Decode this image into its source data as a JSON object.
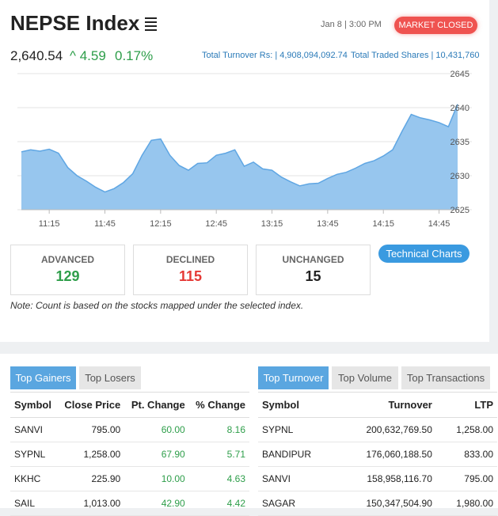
{
  "header": {
    "title": "NEPSE Index",
    "date_time": "Jan 8 | 3:00 PM",
    "market_status": "MARKET CLOSED",
    "index_value": "2,640.54",
    "change": "4.59",
    "change_pct": "0.17%",
    "total_turnover": "Total Turnover Rs: | 4,908,094,092.74",
    "total_traded_shares": "Total Traded Shares | 10,431,760"
  },
  "chart_data": {
    "type": "area",
    "x_ticks": [
      "11:15",
      "11:45",
      "12:15",
      "12:45",
      "13:15",
      "13:45",
      "14:15",
      "14:45"
    ],
    "y_ticks": [
      "2645",
      "2640",
      "2635",
      "2630",
      "2625"
    ],
    "ylim": [
      2625,
      2645
    ],
    "x": [
      "11:00",
      "11:05",
      "11:10",
      "11:15",
      "11:20",
      "11:25",
      "11:30",
      "11:35",
      "11:40",
      "11:45",
      "11:50",
      "11:55",
      "12:00",
      "12:05",
      "12:10",
      "12:15",
      "12:20",
      "12:25",
      "12:30",
      "12:35",
      "12:40",
      "12:45",
      "12:50",
      "12:55",
      "13:00",
      "13:05",
      "13:10",
      "13:15",
      "13:20",
      "13:25",
      "13:30",
      "13:35",
      "13:40",
      "13:45",
      "13:50",
      "13:55",
      "14:00",
      "14:05",
      "14:10",
      "14:15",
      "14:20",
      "14:25",
      "14:30",
      "14:35",
      "14:40",
      "14:45",
      "14:50",
      "14:55"
    ],
    "values": [
      2633.5,
      2633.8,
      2633.6,
      2633.9,
      2633.3,
      2631.2,
      2630.0,
      2629.2,
      2628.3,
      2627.6,
      2628.1,
      2629.0,
      2630.3,
      2633.0,
      2635.2,
      2635.4,
      2633.0,
      2631.5,
      2630.8,
      2631.8,
      2631.9,
      2633.0,
      2633.3,
      2633.8,
      2631.4,
      2632.0,
      2631.0,
      2630.8,
      2629.8,
      2629.1,
      2628.5,
      2628.8,
      2628.9,
      2629.6,
      2630.2,
      2630.5,
      2631.1,
      2631.8,
      2632.2,
      2632.9,
      2633.8,
      2636.5,
      2639.0,
      2638.5,
      2638.2,
      2637.8,
      2637.2,
      2640.5
    ]
  },
  "stats": {
    "advanced_label": "ADVANCED",
    "advanced": "129",
    "declined_label": "DECLINED",
    "declined": "115",
    "unchanged_label": "UNCHANGED",
    "unchanged": "15"
  },
  "technical_charts_label": "Technical Charts",
  "note": "Note: Count is based on the stocks mapped under the selected index.",
  "colors": {
    "accent": "#3a9ae0",
    "positive": "#2e9e4a",
    "negative": "#e53935",
    "closed": "#ef5350"
  },
  "gainers": {
    "tabs": [
      "Top Gainers",
      "Top Losers"
    ],
    "headers": [
      "Symbol",
      "Close Price",
      "Pt. Change",
      "% Change"
    ],
    "rows": [
      [
        "SANVI",
        "795.00",
        "60.00",
        "8.16"
      ],
      [
        "SYPNL",
        "1,258.00",
        "67.90",
        "5.71"
      ],
      [
        "KKHC",
        "225.90",
        "10.00",
        "4.63"
      ],
      [
        "SAIL",
        "1,013.00",
        "42.90",
        "4.42"
      ]
    ]
  },
  "turnover": {
    "tabs": [
      "Top Turnover",
      "Top Volume",
      "Top Transactions"
    ],
    "headers": [
      "Symbol",
      "Turnover",
      "LTP"
    ],
    "rows": [
      [
        "SYPNL",
        "200,632,769.50",
        "1,258.00"
      ],
      [
        "BANDIPUR",
        "176,060,188.50",
        "833.00"
      ],
      [
        "SANVI",
        "158,958,116.70",
        "795.00"
      ],
      [
        "SAGAR",
        "150,347,504.90",
        "1,980.00"
      ]
    ]
  }
}
